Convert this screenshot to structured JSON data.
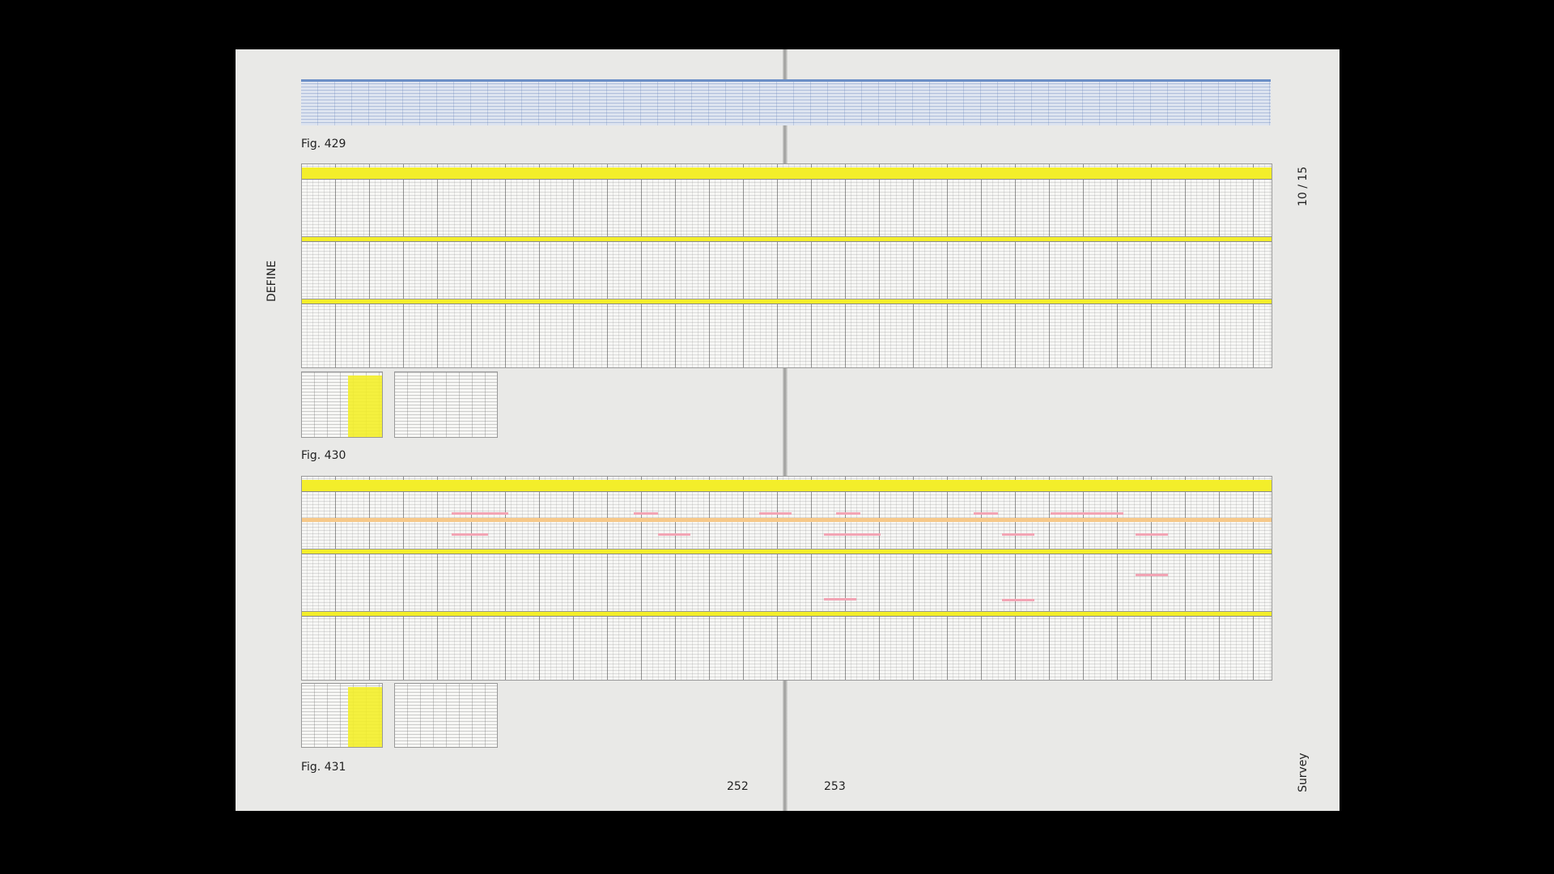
{
  "section": "DEFINE",
  "page_counter": "10 / 15",
  "figures": [
    {
      "caption": "Fig. 429"
    },
    {
      "caption": "Fig. 430"
    },
    {
      "caption": "Fig. 431"
    }
  ],
  "pages": {
    "left": "252",
    "right": "253"
  },
  "footer": "Survey"
}
